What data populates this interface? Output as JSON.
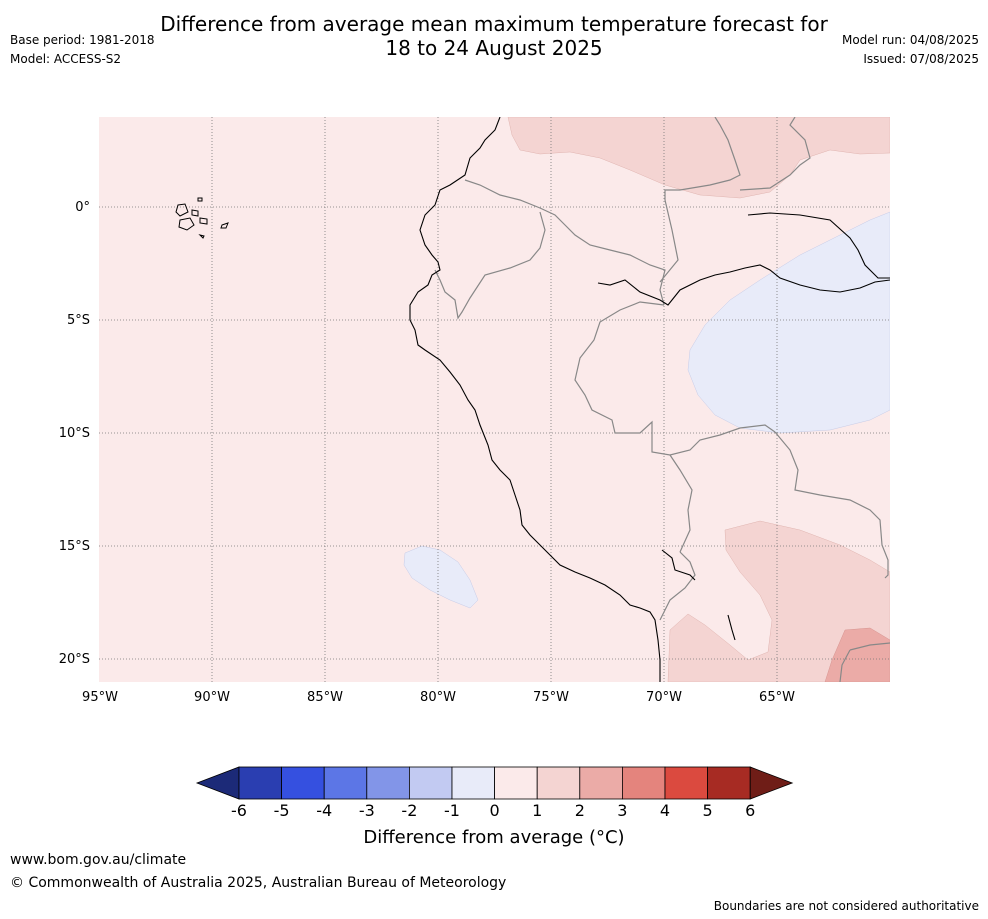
{
  "title": {
    "line1": "Difference from average mean maximum temperature forecast for",
    "line2": "18 to 24 August 2025"
  },
  "left_meta": {
    "base_period": "Base period: 1981-2018",
    "model": "Model: ACCESS-S2"
  },
  "right_meta": {
    "model_run": "Model run: 04/08/2025",
    "issued": "Issued: 07/08/2025"
  },
  "map": {
    "lon_labels": [
      "95°W",
      "90°W",
      "85°W",
      "80°W",
      "75°W",
      "70°W",
      "65°W"
    ],
    "lat_labels": [
      "0°",
      "5°S",
      "10°S",
      "15°S",
      "20°S"
    ],
    "lon_range": [
      -95,
      -60
    ],
    "lat_range": [
      -21,
      4
    ],
    "background_category": "0 to 1",
    "anomaly_regions": [
      {
        "name": "northern Brazil/Colombia warm patch",
        "range": "1 to 2"
      },
      {
        "name": "central Amazon cool patch",
        "range": "-1 to 0"
      },
      {
        "name": "offshore Pacific cool patch",
        "range": "-1 to 0"
      },
      {
        "name": "Bolivia/southern warm patch",
        "range": "1 to 2"
      },
      {
        "name": "far southeast warm patch",
        "range": "2 to 3"
      }
    ]
  },
  "colorbar": {
    "ticks": [
      "-6",
      "-5",
      "-4",
      "-3",
      "-2",
      "-1",
      "0",
      "1",
      "2",
      "3",
      "4",
      "5",
      "6"
    ],
    "colors": [
      "#1c2a78",
      "#2a3eb1",
      "#3550e0",
      "#5c76e6",
      "#8295e8",
      "#c2caf2",
      "#e8ebf9",
      "#fbeaea",
      "#f4d4d2",
      "#ebaba7",
      "#e4847d",
      "#db4a3f",
      "#a72b23",
      "#6f1d17"
    ],
    "label": "Difference from average (°C)"
  },
  "footer": {
    "site": "www.bom.gov.au/climate",
    "copyright": "© Commonwealth of Australia 2025, Australian Bureau of Meteorology",
    "disclaimer": "Boundaries are not considered authoritative"
  }
}
